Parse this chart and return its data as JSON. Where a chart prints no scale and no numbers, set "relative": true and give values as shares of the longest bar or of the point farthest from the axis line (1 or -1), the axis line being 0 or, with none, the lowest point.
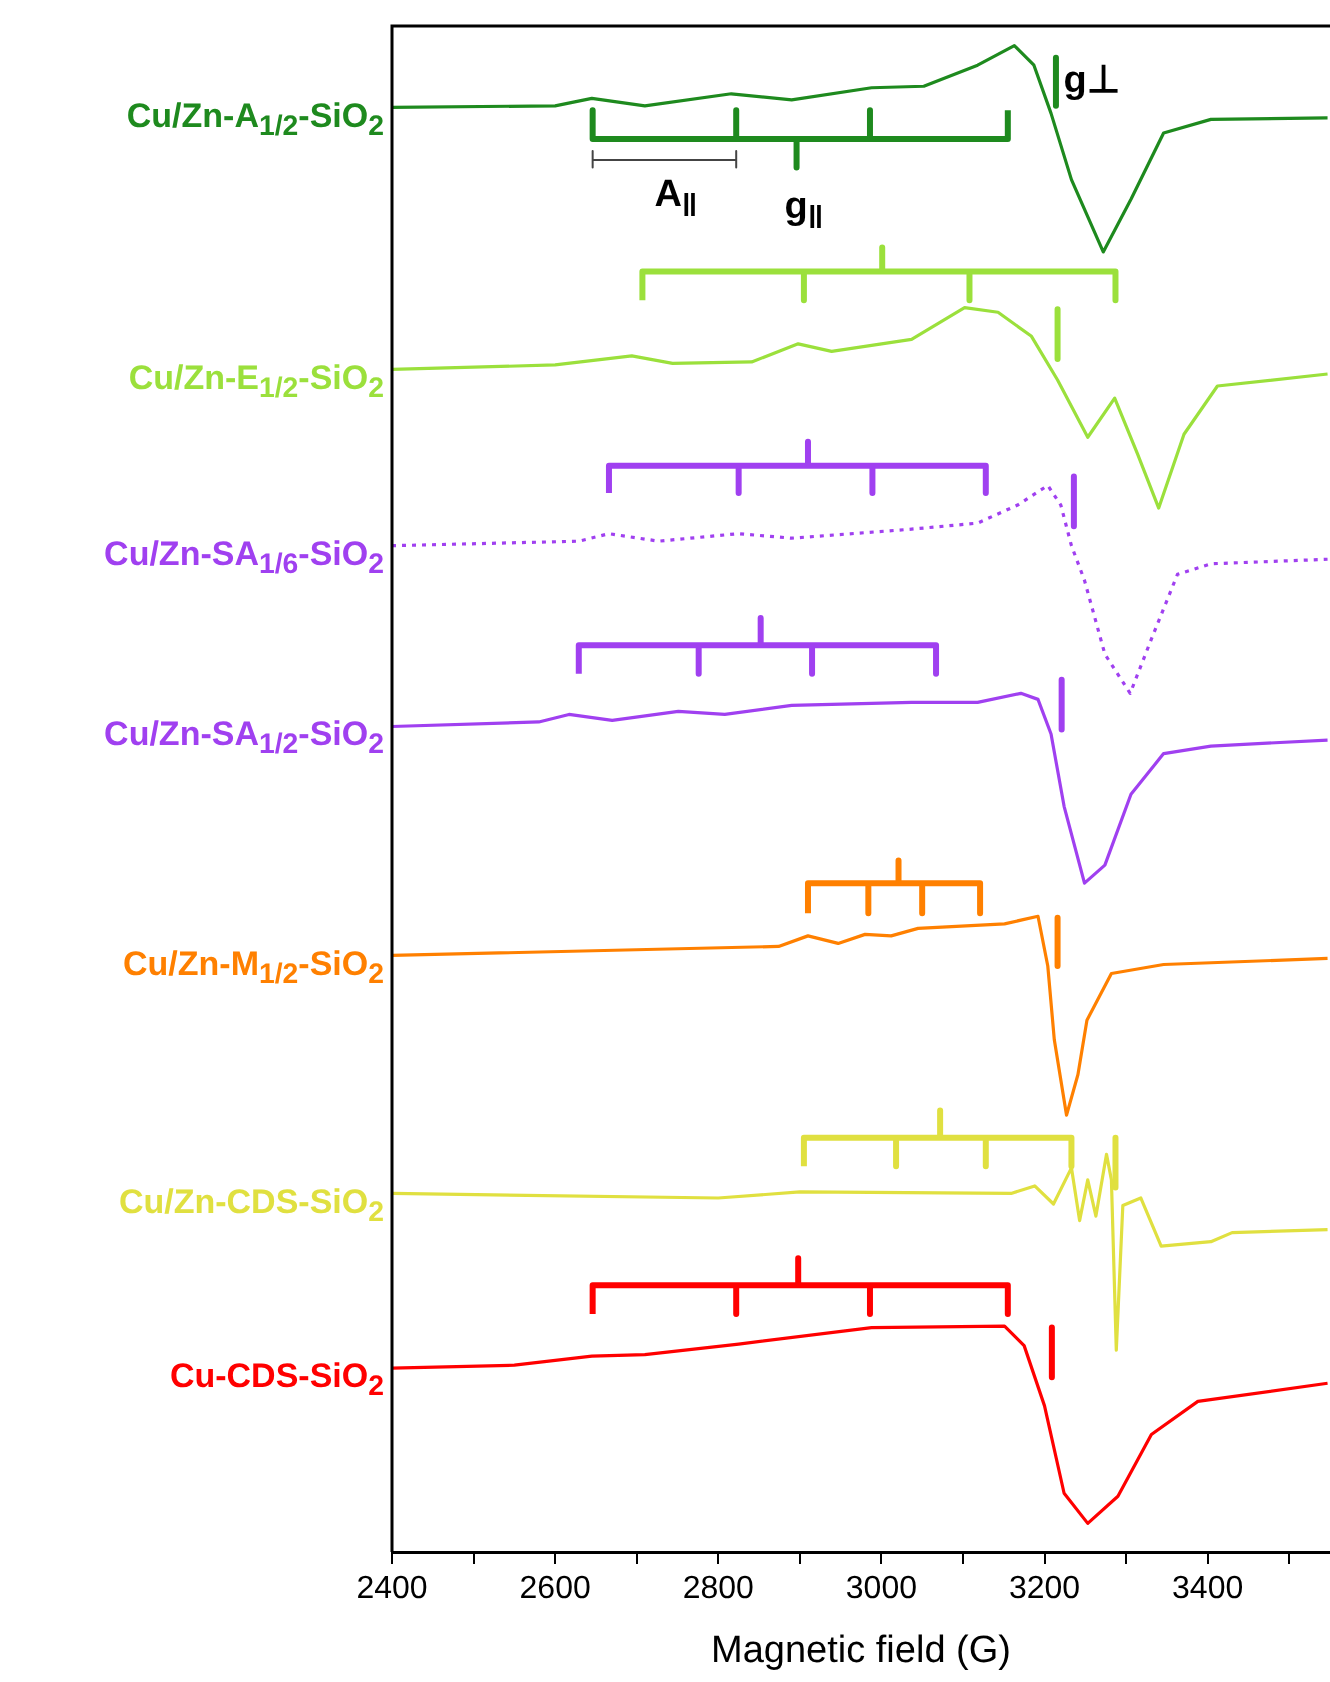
{
  "chart_data": {
    "type": "line",
    "relative": true,
    "xlabel": "Magnetic field (G)",
    "xlim": [
      2400,
      3550
    ],
    "xticks": [
      2400,
      {
        "value": 2500,
        "label": null
      },
      2600,
      {
        "value": 2700,
        "label": null
      },
      2800,
      {
        "value": 2900,
        "label": null
      },
      3000,
      {
        "value": 3100,
        "label": null
      },
      3200,
      {
        "value": 3300,
        "label": null
      },
      3400,
      {
        "value": 3500,
        "label": null
      }
    ],
    "annotations": [
      "A$_{‖}$",
      "g$_{‖}$",
      "g⊥"
    ],
    "series": [
      {
        "name": "Cu/Zn-A$_{1/2}$-SiO$_{2}$",
        "color": "#1e8a1e",
        "x": [
          2400,
          2600,
          2645,
          2710,
          2816,
          2890,
          2988,
          3052,
          3118,
          3163,
          3187,
          3208,
          3233,
          3272,
          3306,
          3346,
          3404,
          3547
        ],
        "values": [
          0.959,
          0.96,
          0.965,
          0.96,
          0.968,
          0.964,
          0.972,
          0.973,
          0.987,
          1.0,
          0.987,
          0.955,
          0.911,
          0.863,
          0.898,
          0.942,
          0.951,
          0.952
        ]
      },
      {
        "name": "Cu/Zn-E$_{1/2}$-SiO$_{2}$",
        "color": "#9be03c",
        "x": [
          2400,
          2600,
          2694,
          2744,
          2841,
          2898,
          2939,
          3037,
          3102,
          3143,
          3184,
          3216,
          3253,
          3286,
          3314,
          3340,
          3371,
          3412,
          3547
        ],
        "values": [
          0.785,
          0.788,
          0.794,
          0.789,
          0.79,
          0.802,
          0.797,
          0.805,
          0.826,
          0.823,
          0.807,
          0.778,
          0.74,
          0.766,
          0.729,
          0.693,
          0.742,
          0.774,
          0.782
        ]
      },
      {
        "name": "Cu/Zn-SA$_{1/6}$-SiO$_{2}$",
        "color": "#a040f0",
        "line_style": "dotted",
        "x": [
          2400,
          2629,
          2666,
          2727,
          2825,
          2890,
          3037,
          3118,
          3167,
          3204,
          3220,
          3233,
          3249,
          3274,
          3305,
          3331,
          3363,
          3404,
          3547
        ],
        "values": [
          0.668,
          0.671,
          0.676,
          0.671,
          0.676,
          0.673,
          0.679,
          0.683,
          0.695,
          0.708,
          0.695,
          0.668,
          0.645,
          0.596,
          0.57,
          0.606,
          0.649,
          0.656,
          0.659
        ]
      },
      {
        "name": "Cu/Zn-SA$_{1/2}$-SiO$_{2}$",
        "color": "#a040f0",
        "x": [
          2400,
          2580,
          2617,
          2670,
          2751,
          2808,
          2890,
          3037,
          3118,
          3171,
          3192,
          3208,
          3224,
          3249,
          3274,
          3306,
          3346,
          3404,
          3547
        ],
        "values": [
          0.548,
          0.551,
          0.556,
          0.552,
          0.558,
          0.556,
          0.562,
          0.564,
          0.564,
          0.57,
          0.566,
          0.543,
          0.495,
          0.444,
          0.456,
          0.503,
          0.53,
          0.535,
          0.539
        ]
      },
      {
        "name": "Cu/Zn-M$_{1/2}$-SiO$_{2}$",
        "color": "#ff8000",
        "x": [
          2400,
          2874,
          2910,
          2947,
          2980,
          3012,
          3045,
          3151,
          3192,
          3204,
          3212,
          3227,
          3241,
          3252,
          3282,
          3346,
          3547
        ],
        "values": [
          0.396,
          0.402,
          0.409,
          0.404,
          0.41,
          0.409,
          0.414,
          0.417,
          0.422,
          0.389,
          0.34,
          0.29,
          0.317,
          0.353,
          0.384,
          0.39,
          0.394
        ]
      },
      {
        "name": "Cu/Zn-CDS-SiO$_{2}$",
        "color": "#e0e040",
        "x": [
          2400,
          2800,
          2900,
          3159,
          3188,
          3211,
          3233,
          3243,
          3253,
          3263,
          3276,
          3282,
          3288,
          3296,
          3318,
          3343,
          3404,
          3430,
          3547
        ],
        "values": [
          0.238,
          0.235,
          0.239,
          0.238,
          0.243,
          0.231,
          0.255,
          0.22,
          0.247,
          0.223,
          0.264,
          0.247,
          0.134,
          0.23,
          0.235,
          0.203,
          0.206,
          0.212,
          0.214
        ]
      },
      {
        "name": "Cu-CDS-SiO$_{2}$",
        "color": "#ff0000",
        "x": [
          2400,
          2550,
          2645,
          2710,
          2825,
          2988,
          3151,
          3175,
          3200,
          3224,
          3253,
          3290,
          3331,
          3388,
          3547
        ],
        "values": [
          0.122,
          0.124,
          0.13,
          0.131,
          0.138,
          0.149,
          0.15,
          0.137,
          0.097,
          0.039,
          0.019,
          0.037,
          0.078,
          0.1,
          0.112
        ]
      },
      {
        "color": "#1e8a1e",
        "x": [
          2646,
          2646,
          2822,
          2822,
          2822,
          2896,
          2896,
          2896,
          2986,
          2986,
          2986,
          3155,
          3155
        ],
        "values": [
          0.957,
          0.938,
          0.938,
          0.957,
          0.938,
          0.938,
          0.919,
          0.938,
          0.938,
          0.957,
          0.938,
          0.938,
          0.957
        ]
      },
      {
        "color": "#1e8a1e",
        "x": [
          3214,
          3214
        ],
        "values": [
          0.992,
          0.96
        ]
      },
      {
        "color": "#444444",
        "x": [
          2646,
          2646,
          2646,
          2822,
          2822,
          2822
        ],
        "values": [
          0.93,
          0.919,
          0.924,
          0.924,
          0.93,
          0.919
        ]
      },
      {
        "color": "#9be03c",
        "x": [
          2707,
          2707,
          2905,
          2905,
          2905,
          3001,
          3001,
          3001,
          3108,
          3108,
          3108,
          3287,
          3287
        ],
        "values": [
          0.831,
          0.85,
          0.85,
          0.831,
          0.85,
          0.85,
          0.866,
          0.85,
          0.85,
          0.831,
          0.85,
          0.85,
          0.831
        ]
      },
      {
        "color": "#9be03c",
        "x": [
          3216,
          3216
        ],
        "values": [
          0.825,
          0.792
        ]
      },
      {
        "color": "#a040f0",
        "x": [
          2666,
          2666,
          2825,
          2825,
          2825,
          2910,
          2910,
          2910,
          2989,
          2989,
          2989,
          3128,
          3128
        ],
        "values": [
          0.703,
          0.721,
          0.721,
          0.703,
          0.721,
          0.721,
          0.737,
          0.721,
          0.721,
          0.703,
          0.721,
          0.721,
          0.703
        ]
      },
      {
        "color": "#a040f0",
        "x": [
          3236,
          3236
        ],
        "values": [
          0.714,
          0.681
        ]
      },
      {
        "color": "#a040f0",
        "x": [
          2629,
          2629,
          2776,
          2776,
          2776,
          2852,
          2852,
          2852,
          2915,
          2915,
          2915,
          3067,
          3067
        ],
        "values": [
          0.583,
          0.602,
          0.602,
          0.583,
          0.602,
          0.602,
          0.62,
          0.602,
          0.602,
          0.583,
          0.602,
          0.602,
          0.583
        ]
      },
      {
        "color": "#a040f0",
        "x": [
          3221,
          3221
        ],
        "values": [
          0.579,
          0.546
        ]
      },
      {
        "color": "#ff8000",
        "x": [
          2910,
          2910,
          2984,
          2984,
          2984,
          3021,
          3021,
          3021,
          3050,
          3050,
          3050,
          3121,
          3121
        ],
        "values": [
          0.424,
          0.444,
          0.444,
          0.424,
          0.444,
          0.444,
          0.459,
          0.444,
          0.444,
          0.424,
          0.444,
          0.444,
          0.424
        ]
      },
      {
        "color": "#ff8000",
        "x": [
          3216,
          3216
        ],
        "values": [
          0.421,
          0.389
        ]
      },
      {
        "color": "#e0e040",
        "x": [
          2905,
          2905,
          3018,
          3018,
          3018,
          3072,
          3072,
          3072,
          3128,
          3128,
          3128,
          3233,
          3233
        ],
        "values": [
          0.256,
          0.275,
          0.275,
          0.256,
          0.275,
          0.275,
          0.293,
          0.275,
          0.275,
          0.256,
          0.275,
          0.275,
          0.256
        ]
      },
      {
        "color": "#e0e040",
        "x": [
          3287,
          3287
        ],
        "values": [
          0.275,
          0.242
        ]
      },
      {
        "color": "#ff0000",
        "x": [
          2646,
          2646,
          2822,
          2822,
          2822,
          2898,
          2898,
          2898,
          2986,
          2986,
          2986,
          3155,
          3155
        ],
        "values": [
          0.158,
          0.177,
          0.177,
          0.158,
          0.177,
          0.177,
          0.195,
          0.177,
          0.177,
          0.158,
          0.177,
          0.177,
          0.158
        ]
      },
      {
        "color": "#ff0000",
        "x": [
          3209,
          3209
        ],
        "values": [
          0.149,
          0.116
        ]
      }
    ]
  }
}
